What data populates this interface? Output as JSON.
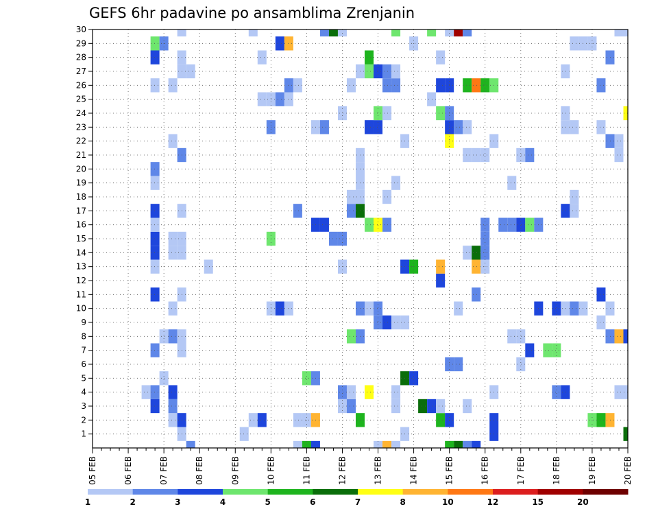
{
  "chart_data": {
    "type": "heatmap",
    "title": "GEFS 6hr padavine po ansamblima Zrenjanin",
    "xlabel": "",
    "ylabel": "",
    "x_tick_labels": [
      "05 FEB",
      "06 FEB",
      "07 FEB",
      "08 FEB",
      "09 FEB",
      "10 FEB",
      "11 FEB",
      "12 FEB",
      "13 FEB",
      "14 FEB",
      "15 FEB",
      "16 FEB",
      "17 FEB",
      "18 FEB",
      "19 FEB",
      "20 FEB"
    ],
    "xlim_steps": [
      0,
      60
    ],
    "steps_per_day": 4,
    "ylim": [
      0,
      30
    ],
    "y_tick_labels": [
      "1",
      "2",
      "3",
      "4",
      "5",
      "6",
      "7",
      "8",
      "9",
      "10",
      "11",
      "12",
      "13",
      "14",
      "15",
      "16",
      "17",
      "18",
      "19",
      "20",
      "21",
      "22",
      "23",
      "24",
      "25",
      "26",
      "27",
      "28",
      "29",
      "30"
    ],
    "legend": {
      "position": "bottom",
      "bin_colors": [
        "#b4c8f5",
        "#5f87e8",
        "#1e46dc",
        "#6ee66e",
        "#1eb41e",
        "#0a6e0a",
        "#ffff14",
        "#ffb432",
        "#ff7814",
        "#dc1e1e",
        "#a00000",
        "#6e0000"
      ],
      "tick_labels": [
        "1",
        "2",
        "3",
        "4",
        "5",
        "6",
        "7",
        "8",
        "10",
        "12",
        "15",
        "20"
      ]
    },
    "cell_units": "member row (0-30) by 6-hour step; value = color bin index 1-12",
    "cells": [
      [
        10,
        1,
        1
      ],
      [
        17,
        1,
        1
      ],
      [
        35,
        1,
        1
      ],
      [
        45,
        1,
        3
      ],
      [
        60,
        1,
        6
      ],
      [
        9,
        2,
        1
      ],
      [
        10,
        2,
        3
      ],
      [
        18,
        2,
        1
      ],
      [
        19,
        2,
        3
      ],
      [
        23,
        2,
        1
      ],
      [
        24,
        2,
        1
      ],
      [
        25,
        2,
        8
      ],
      [
        30,
        2,
        5
      ],
      [
        39,
        2,
        5
      ],
      [
        40,
        2,
        3
      ],
      [
        45,
        2,
        3
      ],
      [
        56,
        2,
        4
      ],
      [
        57,
        2,
        5
      ],
      [
        58,
        2,
        8
      ],
      [
        7,
        3,
        3
      ],
      [
        9,
        3,
        2
      ],
      [
        28,
        3,
        1
      ],
      [
        29,
        3,
        2
      ],
      [
        34,
        3,
        1
      ],
      [
        37,
        3,
        6
      ],
      [
        38,
        3,
        3
      ],
      [
        39,
        3,
        1
      ],
      [
        42,
        3,
        1
      ],
      [
        6,
        4,
        1
      ],
      [
        7,
        4,
        2
      ],
      [
        9,
        4,
        3
      ],
      [
        28,
        4,
        2
      ],
      [
        29,
        4,
        1
      ],
      [
        31,
        4,
        7
      ],
      [
        34,
        4,
        1
      ],
      [
        45,
        4,
        1
      ],
      [
        52,
        4,
        2
      ],
      [
        53,
        4,
        3
      ],
      [
        59,
        4,
        1
      ],
      [
        60,
        4,
        1
      ],
      [
        8,
        5,
        1
      ],
      [
        24,
        5,
        4
      ],
      [
        25,
        5,
        2
      ],
      [
        35,
        5,
        6
      ],
      [
        36,
        5,
        3
      ],
      [
        40,
        6,
        2
      ],
      [
        41,
        6,
        2
      ],
      [
        48,
        6,
        1
      ],
      [
        7,
        7,
        2
      ],
      [
        10,
        7,
        1
      ],
      [
        49,
        7,
        3
      ],
      [
        51,
        7,
        4
      ],
      [
        52,
        7,
        4
      ],
      [
        8,
        8,
        1
      ],
      [
        9,
        8,
        2
      ],
      [
        10,
        8,
        1
      ],
      [
        29,
        8,
        4
      ],
      [
        30,
        8,
        2
      ],
      [
        47,
        8,
        1
      ],
      [
        48,
        8,
        1
      ],
      [
        58,
        8,
        2
      ],
      [
        59,
        8,
        8
      ],
      [
        60,
        8,
        3
      ],
      [
        32,
        9,
        2
      ],
      [
        33,
        9,
        3
      ],
      [
        34,
        9,
        1
      ],
      [
        35,
        9,
        1
      ],
      [
        57,
        9,
        1
      ],
      [
        9,
        10,
        1
      ],
      [
        20,
        10,
        1
      ],
      [
        21,
        10,
        3
      ],
      [
        22,
        10,
        1
      ],
      [
        30,
        10,
        2
      ],
      [
        31,
        10,
        1
      ],
      [
        32,
        10,
        2
      ],
      [
        41,
        10,
        1
      ],
      [
        50,
        10,
        3
      ],
      [
        52,
        10,
        3
      ],
      [
        53,
        10,
        1
      ],
      [
        54,
        10,
        2
      ],
      [
        55,
        10,
        1
      ],
      [
        58,
        10,
        1
      ],
      [
        7,
        11,
        3
      ],
      [
        10,
        11,
        1
      ],
      [
        43,
        11,
        2
      ],
      [
        57,
        11,
        3
      ],
      [
        39,
        12,
        3
      ],
      [
        7,
        13,
        1
      ],
      [
        13,
        13,
        1
      ],
      [
        28,
        13,
        1
      ],
      [
        35,
        13,
        3
      ],
      [
        36,
        13,
        5
      ],
      [
        39,
        13,
        8
      ],
      [
        43,
        13,
        8
      ],
      [
        44,
        13,
        1
      ],
      [
        7,
        14,
        3
      ],
      [
        9,
        14,
        1
      ],
      [
        10,
        14,
        1
      ],
      [
        42,
        14,
        1
      ],
      [
        43,
        14,
        6
      ],
      [
        44,
        14,
        2
      ],
      [
        7,
        15,
        3
      ],
      [
        9,
        15,
        1
      ],
      [
        10,
        15,
        1
      ],
      [
        20,
        15,
        4
      ],
      [
        27,
        15,
        2
      ],
      [
        28,
        15,
        2
      ],
      [
        44,
        15,
        2
      ],
      [
        7,
        16,
        1
      ],
      [
        25,
        16,
        3
      ],
      [
        26,
        16,
        3
      ],
      [
        31,
        16,
        4
      ],
      [
        32,
        16,
        7
      ],
      [
        33,
        16,
        2
      ],
      [
        44,
        16,
        2
      ],
      [
        46,
        16,
        2
      ],
      [
        47,
        16,
        2
      ],
      [
        48,
        16,
        3
      ],
      [
        49,
        16,
        4
      ],
      [
        50,
        16,
        2
      ],
      [
        7,
        17,
        3
      ],
      [
        10,
        17,
        1
      ],
      [
        23,
        17,
        2
      ],
      [
        29,
        17,
        2
      ],
      [
        30,
        17,
        6
      ],
      [
        53,
        17,
        3
      ],
      [
        54,
        17,
        1
      ],
      [
        29,
        18,
        1
      ],
      [
        30,
        18,
        1
      ],
      [
        33,
        18,
        1
      ],
      [
        54,
        18,
        1
      ],
      [
        7,
        19,
        1
      ],
      [
        30,
        19,
        1
      ],
      [
        34,
        19,
        1
      ],
      [
        47,
        19,
        1
      ],
      [
        7,
        20,
        2
      ],
      [
        30,
        20,
        1
      ],
      [
        10,
        21,
        2
      ],
      [
        30,
        21,
        1
      ],
      [
        42,
        21,
        1
      ],
      [
        43,
        21,
        1
      ],
      [
        44,
        21,
        1
      ],
      [
        48,
        21,
        1
      ],
      [
        49,
        21,
        2
      ],
      [
        59,
        21,
        1
      ],
      [
        9,
        22,
        1
      ],
      [
        35,
        22,
        1
      ],
      [
        40,
        22,
        7
      ],
      [
        45,
        22,
        1
      ],
      [
        58,
        22,
        2
      ],
      [
        59,
        22,
        1
      ],
      [
        20,
        23,
        2
      ],
      [
        25,
        23,
        1
      ],
      [
        26,
        23,
        2
      ],
      [
        31,
        23,
        3
      ],
      [
        32,
        23,
        3
      ],
      [
        40,
        23,
        3
      ],
      [
        41,
        23,
        2
      ],
      [
        42,
        23,
        1
      ],
      [
        53,
        23,
        1
      ],
      [
        54,
        23,
        1
      ],
      [
        57,
        23,
        1
      ],
      [
        28,
        24,
        1
      ],
      [
        32,
        24,
        4
      ],
      [
        33,
        24,
        1
      ],
      [
        39,
        24,
        4
      ],
      [
        40,
        24,
        2
      ],
      [
        53,
        24,
        1
      ],
      [
        60,
        24,
        7
      ],
      [
        19,
        25,
        1
      ],
      [
        20,
        25,
        1
      ],
      [
        21,
        25,
        2
      ],
      [
        22,
        25,
        1
      ],
      [
        38,
        25,
        1
      ],
      [
        7,
        26,
        1
      ],
      [
        9,
        26,
        1
      ],
      [
        22,
        26,
        2
      ],
      [
        23,
        26,
        1
      ],
      [
        29,
        26,
        1
      ],
      [
        33,
        26,
        2
      ],
      [
        34,
        26,
        2
      ],
      [
        39,
        26,
        3
      ],
      [
        40,
        26,
        3
      ],
      [
        42,
        26,
        5
      ],
      [
        43,
        26,
        9
      ],
      [
        44,
        26,
        5
      ],
      [
        45,
        26,
        4
      ],
      [
        57,
        26,
        2
      ],
      [
        10,
        27,
        1
      ],
      [
        11,
        27,
        1
      ],
      [
        30,
        27,
        1
      ],
      [
        31,
        27,
        4
      ],
      [
        32,
        27,
        3
      ],
      [
        33,
        27,
        2
      ],
      [
        34,
        27,
        1
      ],
      [
        53,
        27,
        1
      ],
      [
        7,
        28,
        3
      ],
      [
        10,
        28,
        1
      ],
      [
        19,
        28,
        1
      ],
      [
        31,
        28,
        5
      ],
      [
        39,
        28,
        1
      ],
      [
        58,
        28,
        2
      ],
      [
        7,
        29,
        4
      ],
      [
        8,
        29,
        2
      ],
      [
        21,
        29,
        3
      ],
      [
        22,
        29,
        8
      ],
      [
        36,
        29,
        1
      ],
      [
        54,
        29,
        1
      ],
      [
        55,
        29,
        1
      ],
      [
        56,
        29,
        1
      ],
      [
        10,
        30,
        1
      ],
      [
        18,
        30,
        1
      ],
      [
        26,
        30,
        2
      ],
      [
        27,
        30,
        6
      ],
      [
        28,
        30,
        1
      ],
      [
        34,
        30,
        4
      ],
      [
        38,
        30,
        4
      ],
      [
        40,
        30,
        1
      ],
      [
        41,
        30,
        11
      ],
      [
        42,
        30,
        2
      ],
      [
        59,
        30,
        1
      ],
      [
        60,
        30,
        1
      ],
      [
        11,
        0,
        2
      ],
      [
        23,
        0,
        1
      ],
      [
        24,
        0,
        5
      ],
      [
        25,
        0,
        3
      ],
      [
        32,
        0,
        1
      ],
      [
        33,
        0,
        8
      ],
      [
        34,
        0,
        1
      ],
      [
        40,
        0,
        5
      ],
      [
        41,
        0,
        6
      ],
      [
        42,
        0,
        2
      ],
      [
        43,
        0,
        3
      ]
    ]
  }
}
